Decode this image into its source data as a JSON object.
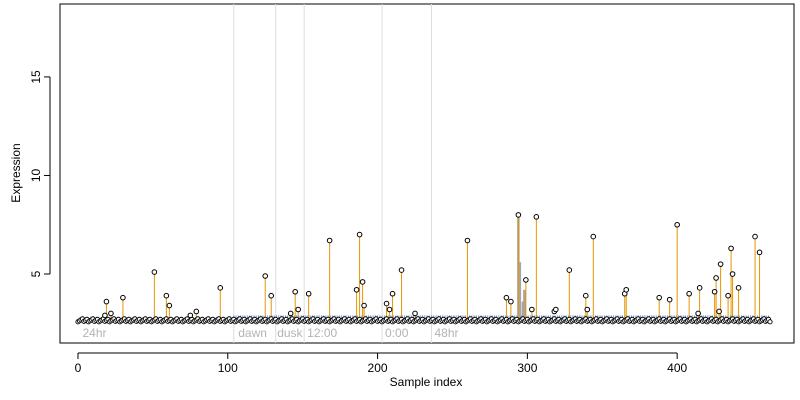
{
  "chart_data": {
    "type": "scatter",
    "title": "",
    "xlabel": "Sample index",
    "ylabel": "Expression",
    "xlim": [
      -12,
      478
    ],
    "ylim": [
      1.5,
      18.7
    ],
    "x_ticks": [
      0,
      100,
      200,
      300,
      400
    ],
    "x_tick_labels": [
      "0",
      "100",
      "200",
      "300",
      "400"
    ],
    "y_ticks": [
      5,
      10,
      15
    ],
    "y_tick_labels": [
      "5",
      "10",
      "15"
    ],
    "baseline": 2.65,
    "colors": {
      "spike": "#e69500",
      "gray_spike": "#a6a6a6",
      "blue_band": "#6f9be0",
      "point": "#000000",
      "divider": "#dddddd",
      "phase_text": "#b3b3b3"
    },
    "phase_dividers": [
      104,
      132,
      151,
      203,
      236
    ],
    "phase_labels": [
      {
        "x": 3,
        "text": "24hr"
      },
      {
        "x": 107,
        "text": "dawn"
      },
      {
        "x": 133,
        "text": "dusk"
      },
      {
        "x": 153,
        "text": "12:00"
      },
      {
        "x": 205,
        "text": "0:00"
      },
      {
        "x": 238,
        "text": "48hr"
      }
    ],
    "blue_band": {
      "x_start": 104,
      "x_end": 462,
      "y": 2.8
    },
    "spikes": [
      {
        "x": 18,
        "y": 2.9
      },
      {
        "x": 19,
        "y": 3.6
      },
      {
        "x": 22,
        "y": 3.0
      },
      {
        "x": 30,
        "y": 3.8
      },
      {
        "x": 51,
        "y": 5.1
      },
      {
        "x": 59,
        "y": 3.9
      },
      {
        "x": 61,
        "y": 3.4
      },
      {
        "x": 75,
        "y": 2.9
      },
      {
        "x": 79,
        "y": 3.1
      },
      {
        "x": 95,
        "y": 4.3
      },
      {
        "x": 125,
        "y": 4.9
      },
      {
        "x": 129,
        "y": 3.9
      },
      {
        "x": 142,
        "y": 3.0
      },
      {
        "x": 145,
        "y": 4.1
      },
      {
        "x": 147,
        "y": 3.2
      },
      {
        "x": 154,
        "y": 4.0
      },
      {
        "x": 168,
        "y": 6.7
      },
      {
        "x": 186,
        "y": 4.2
      },
      {
        "x": 188,
        "y": 7.0
      },
      {
        "x": 190,
        "y": 4.6
      },
      {
        "x": 191,
        "y": 3.4
      },
      {
        "x": 206,
        "y": 3.5
      },
      {
        "x": 208,
        "y": 3.2
      },
      {
        "x": 210,
        "y": 4.0
      },
      {
        "x": 216,
        "y": 5.2
      },
      {
        "x": 225,
        "y": 3.0
      },
      {
        "x": 260,
        "y": 6.7
      },
      {
        "x": 286,
        "y": 3.8
      },
      {
        "x": 289,
        "y": 3.6
      },
      {
        "x": 294,
        "y": 8.0
      },
      {
        "x": 299,
        "y": 4.7
      },
      {
        "x": 303,
        "y": 3.2
      },
      {
        "x": 306,
        "y": 7.9
      },
      {
        "x": 328,
        "y": 5.2
      },
      {
        "x": 339,
        "y": 3.9
      },
      {
        "x": 340,
        "y": 3.2
      },
      {
        "x": 344,
        "y": 6.9
      },
      {
        "x": 365,
        "y": 4.0
      },
      {
        "x": 366,
        "y": 4.2
      },
      {
        "x": 388,
        "y": 3.8
      },
      {
        "x": 395,
        "y": 3.7
      },
      {
        "x": 400,
        "y": 7.5
      },
      {
        "x": 408,
        "y": 4.0
      },
      {
        "x": 414,
        "y": 3.0
      },
      {
        "x": 415,
        "y": 4.3
      },
      {
        "x": 425,
        "y": 4.1
      },
      {
        "x": 426,
        "y": 4.8
      },
      {
        "x": 428,
        "y": 3.1
      },
      {
        "x": 429,
        "y": 5.5
      },
      {
        "x": 434,
        "y": 3.9
      },
      {
        "x": 436,
        "y": 6.3
      },
      {
        "x": 437,
        "y": 5.0
      },
      {
        "x": 441,
        "y": 4.3
      },
      {
        "x": 452,
        "y": 6.9
      },
      {
        "x": 455,
        "y": 6.1
      }
    ],
    "gray_spikes": [
      {
        "x": 294,
        "y": 7.9
      },
      {
        "x": 295,
        "y": 5.6
      },
      {
        "x": 297,
        "y": 3.6
      },
      {
        "x": 298,
        "y": 4.2
      }
    ],
    "extra_points": [
      {
        "x": 318,
        "y": 3.1
      },
      {
        "x": 319,
        "y": 3.2
      }
    ],
    "baseline_points_range": [
      0,
      462
    ]
  }
}
